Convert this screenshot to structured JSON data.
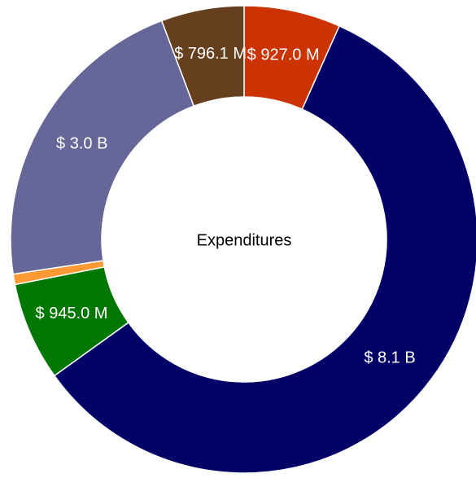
{
  "chart_data": {
    "type": "pie",
    "title": "Expenditures",
    "values": [
      927000000,
      8100000000,
      945000000,
      100000000,
      3000000000,
      796100000
    ],
    "value_labels": [
      "$ 927.0 M",
      "$ 8.1 B",
      "$ 945.0 M",
      null,
      "$ 3.0 B",
      "$ 796.1 M"
    ],
    "colors": [
      "#cc3300",
      "#000066",
      "#007700",
      "#ff9933",
      "#666699",
      "#663f1f"
    ]
  }
}
